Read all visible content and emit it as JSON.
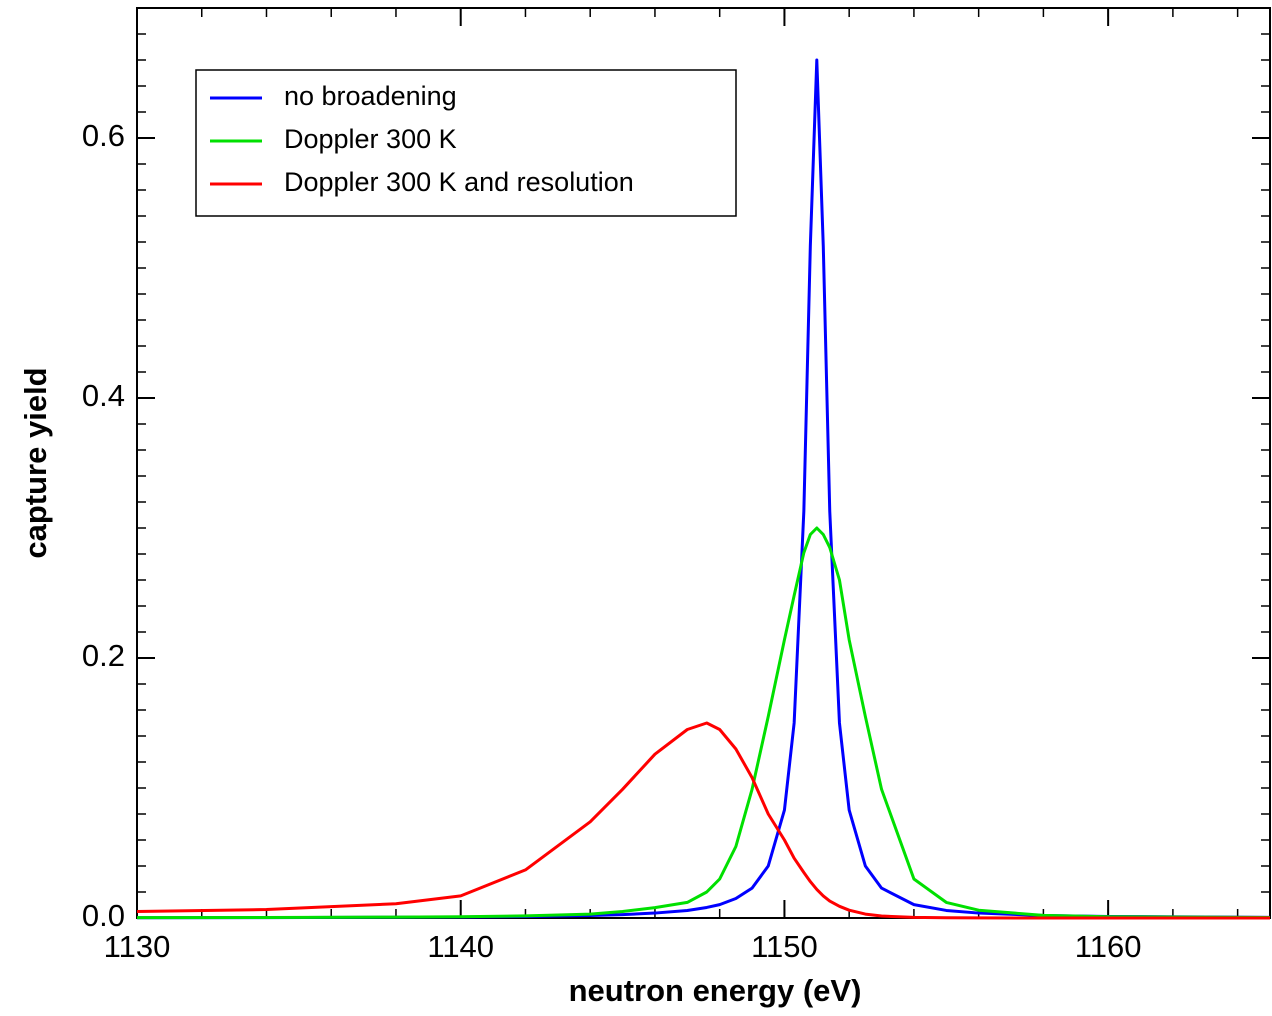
{
  "chart_data": {
    "type": "line",
    "x_label": "neutron energy (eV)",
    "y_label": "capture yield",
    "x": [
      1130,
      1134,
      1138,
      1140,
      1142,
      1144,
      1145,
      1146,
      1147,
      1147.6,
      1148,
      1148.5,
      1149,
      1149.5,
      1150,
      1150.3,
      1150.6,
      1150.8,
      1151,
      1151.2,
      1151.4,
      1151.7,
      1152,
      1152.5,
      1153,
      1154,
      1155,
      1156,
      1158,
      1160,
      1165
    ],
    "series": [
      {
        "name": "no broadening",
        "color": "#0000ff",
        "values": [
          0.0002,
          0.0003,
          0.0006,
          0.0008,
          0.0012,
          0.0019,
          0.0026,
          0.0038,
          0.0058,
          0.0081,
          0.0103,
          0.015,
          0.023,
          0.04,
          0.083,
          0.15,
          0.313,
          0.517,
          0.66,
          0.517,
          0.313,
          0.15,
          0.083,
          0.04,
          0.023,
          0.0103,
          0.0058,
          0.0038,
          0.0019,
          0.0012,
          0.0005
        ]
      },
      {
        "name": "Doppler 300 K",
        "color": "#00e000",
        "values": [
          0.0003,
          0.0004,
          0.0007,
          0.001,
          0.0016,
          0.003,
          0.005,
          0.008,
          0.012,
          0.02,
          0.03,
          0.055,
          0.099,
          0.155,
          0.214,
          0.248,
          0.281,
          0.295,
          0.3,
          0.295,
          0.285,
          0.26,
          0.214,
          0.155,
          0.099,
          0.03,
          0.012,
          0.006,
          0.002,
          0.001,
          0.0004
        ]
      },
      {
        "name": "Doppler 300 K and resolution",
        "color": "#ff0000",
        "values": [
          0.005,
          0.0065,
          0.011,
          0.017,
          0.037,
          0.074,
          0.099,
          0.126,
          0.145,
          0.15,
          0.145,
          0.13,
          0.108,
          0.08,
          0.06,
          0.046,
          0.035,
          0.028,
          0.022,
          0.017,
          0.013,
          0.009,
          0.006,
          0.003,
          0.0015,
          0.0005,
          0.0002,
          0.0001,
          0,
          0,
          0
        ]
      }
    ],
    "xlim": [
      1130,
      1165
    ],
    "xticks": [
      1130,
      1140,
      1150,
      1160
    ],
    "ylim": [
      0,
      0.7
    ],
    "yticks": [
      {
        "value": 0,
        "label": "0.0"
      },
      0.2,
      0.4,
      0.6
    ],
    "legend": "upper left",
    "grid": false
  }
}
